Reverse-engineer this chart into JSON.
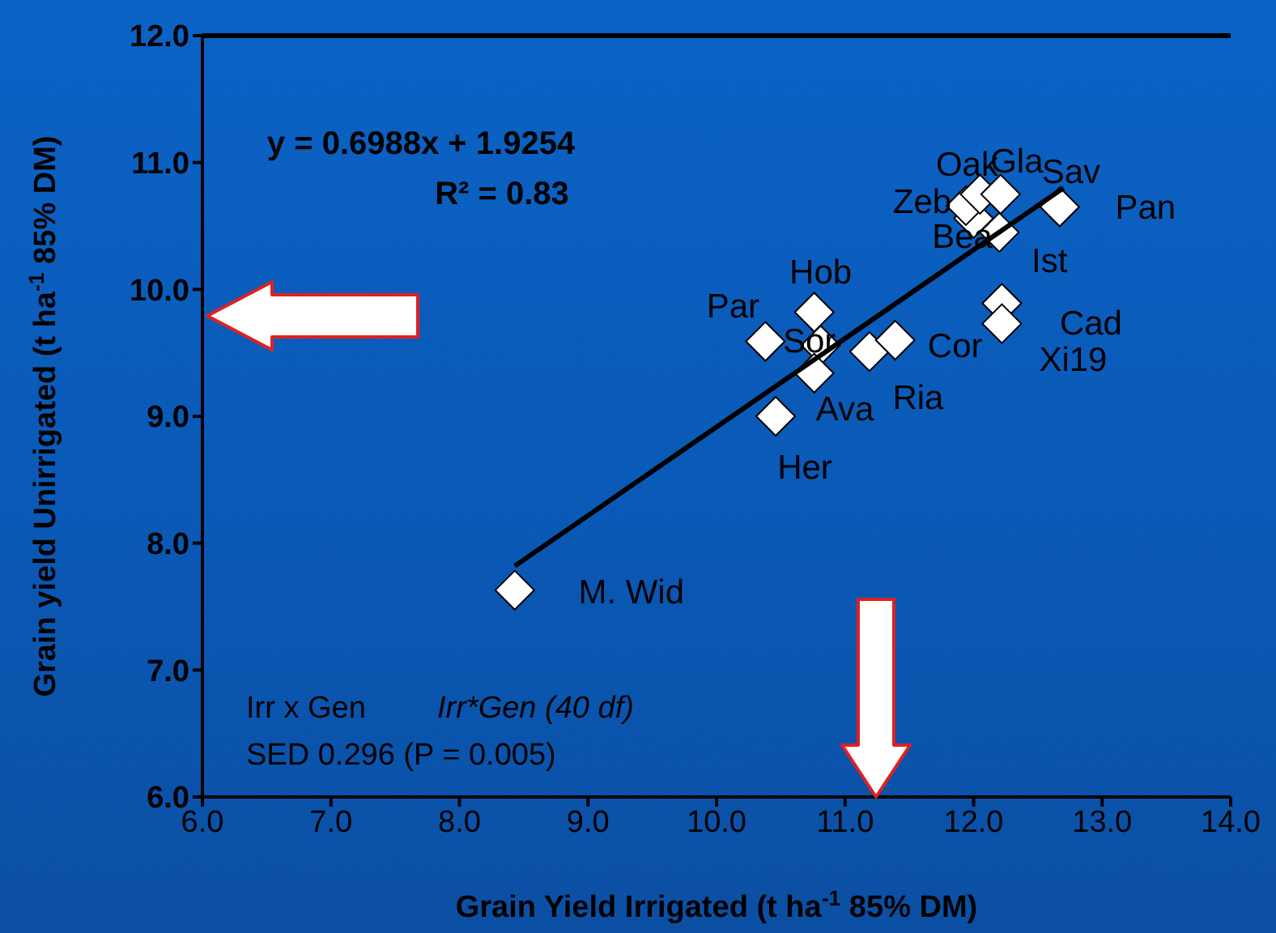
{
  "chart_data": {
    "type": "scatter",
    "xlabel": "Grain Yield Irrigated (t ha$^{-1}$ 85% DM)",
    "ylabel": "Grain yield Unirrigated (t ha$^{-1}$ 85% DM)",
    "xlim": [
      6,
      14
    ],
    "ylim": [
      6,
      12
    ],
    "xticks": [
      {
        "value": 6,
        "label": "6.0"
      },
      {
        "value": 7,
        "label": "7.0"
      },
      {
        "value": 8,
        "label": "8.0"
      },
      {
        "value": 9,
        "label": "9.0"
      },
      {
        "value": 10,
        "label": "10.0"
      },
      {
        "value": 11,
        "label": "11.0"
      },
      {
        "value": 12,
        "label": "12.0"
      },
      {
        "value": 13,
        "label": "13.0"
      },
      {
        "value": 14,
        "label": "14.0"
      }
    ],
    "yticks": [
      {
        "value": 6,
        "label": "6.0"
      },
      {
        "value": 7,
        "label": "7.0"
      },
      {
        "value": 8,
        "label": "8.0"
      },
      {
        "value": 9,
        "label": "9.0"
      },
      {
        "value": 10,
        "label": "10.0"
      },
      {
        "value": 11,
        "label": "11.0"
      },
      {
        "value": 12,
        "label": "12.0"
      }
    ],
    "grid": false,
    "legend": false,
    "series": [
      {
        "marker": "diamond",
        "color": "#ffffff",
        "x": [
          8.43,
          10.46,
          10.38,
          10.76,
          10.81,
          10.76,
          11.19,
          11.39,
          12.22,
          12.22,
          12.2,
          12.0,
          11.94,
          12.05,
          12.21,
          12.67
        ],
        "values": [
          7.63,
          9.0,
          9.59,
          9.82,
          9.56,
          9.34,
          9.51,
          9.6,
          9.89,
          9.73,
          10.45,
          10.56,
          10.66,
          10.75,
          10.75,
          10.65
        ]
      },
      {
        "type": "line",
        "marker": "none",
        "color": "#000000",
        "x": [
          8.43,
          12.7
        ],
        "values": [
          7.82,
          10.8
        ]
      }
    ],
    "annotations": [
      {
        "text": "M. Wid",
        "x": 8.43,
        "y": 7.63
      },
      {
        "text": "Her",
        "x": 10.46,
        "y": 9.0
      },
      {
        "text": "Ava",
        "x": 10.76,
        "y": 9.34
      },
      {
        "text": "Ria",
        "x": 11.19,
        "y": 9.51
      },
      {
        "text": "Cor",
        "x": 11.39,
        "y": 9.6
      },
      {
        "text": "Par",
        "x": 10.38,
        "y": 9.59
      },
      {
        "text": "Hob",
        "x": 10.76,
        "y": 9.82
      },
      {
        "text": "Sor",
        "x": 10.81,
        "y": 9.56
      },
      {
        "text": "Xi19",
        "x": 12.22,
        "y": 9.73
      },
      {
        "text": "Cad",
        "x": 12.22,
        "y": 9.89
      },
      {
        "text": "Ist",
        "x": 12.2,
        "y": 10.45
      },
      {
        "text": "Bea",
        "x": 12.0,
        "y": 10.56
      },
      {
        "text": "Zeb",
        "x": 11.94,
        "y": 10.66
      },
      {
        "text": "Oak",
        "x": 12.05,
        "y": 10.75
      },
      {
        "text": "Gla",
        "x": 12.21,
        "y": 10.75
      },
      {
        "text": "Sav",
        "x": 12.67,
        "y": 10.65
      },
      {
        "text": "Pan",
        "x": 12.67,
        "y": 10.65
      },
      "y = 0.6988x + 1.9254",
      "R² = 0.83",
      "Irr x Gen",
      "Irr*Gen (40 df)",
      "SED 0.296 (P = 0.005)"
    ]
  }
}
